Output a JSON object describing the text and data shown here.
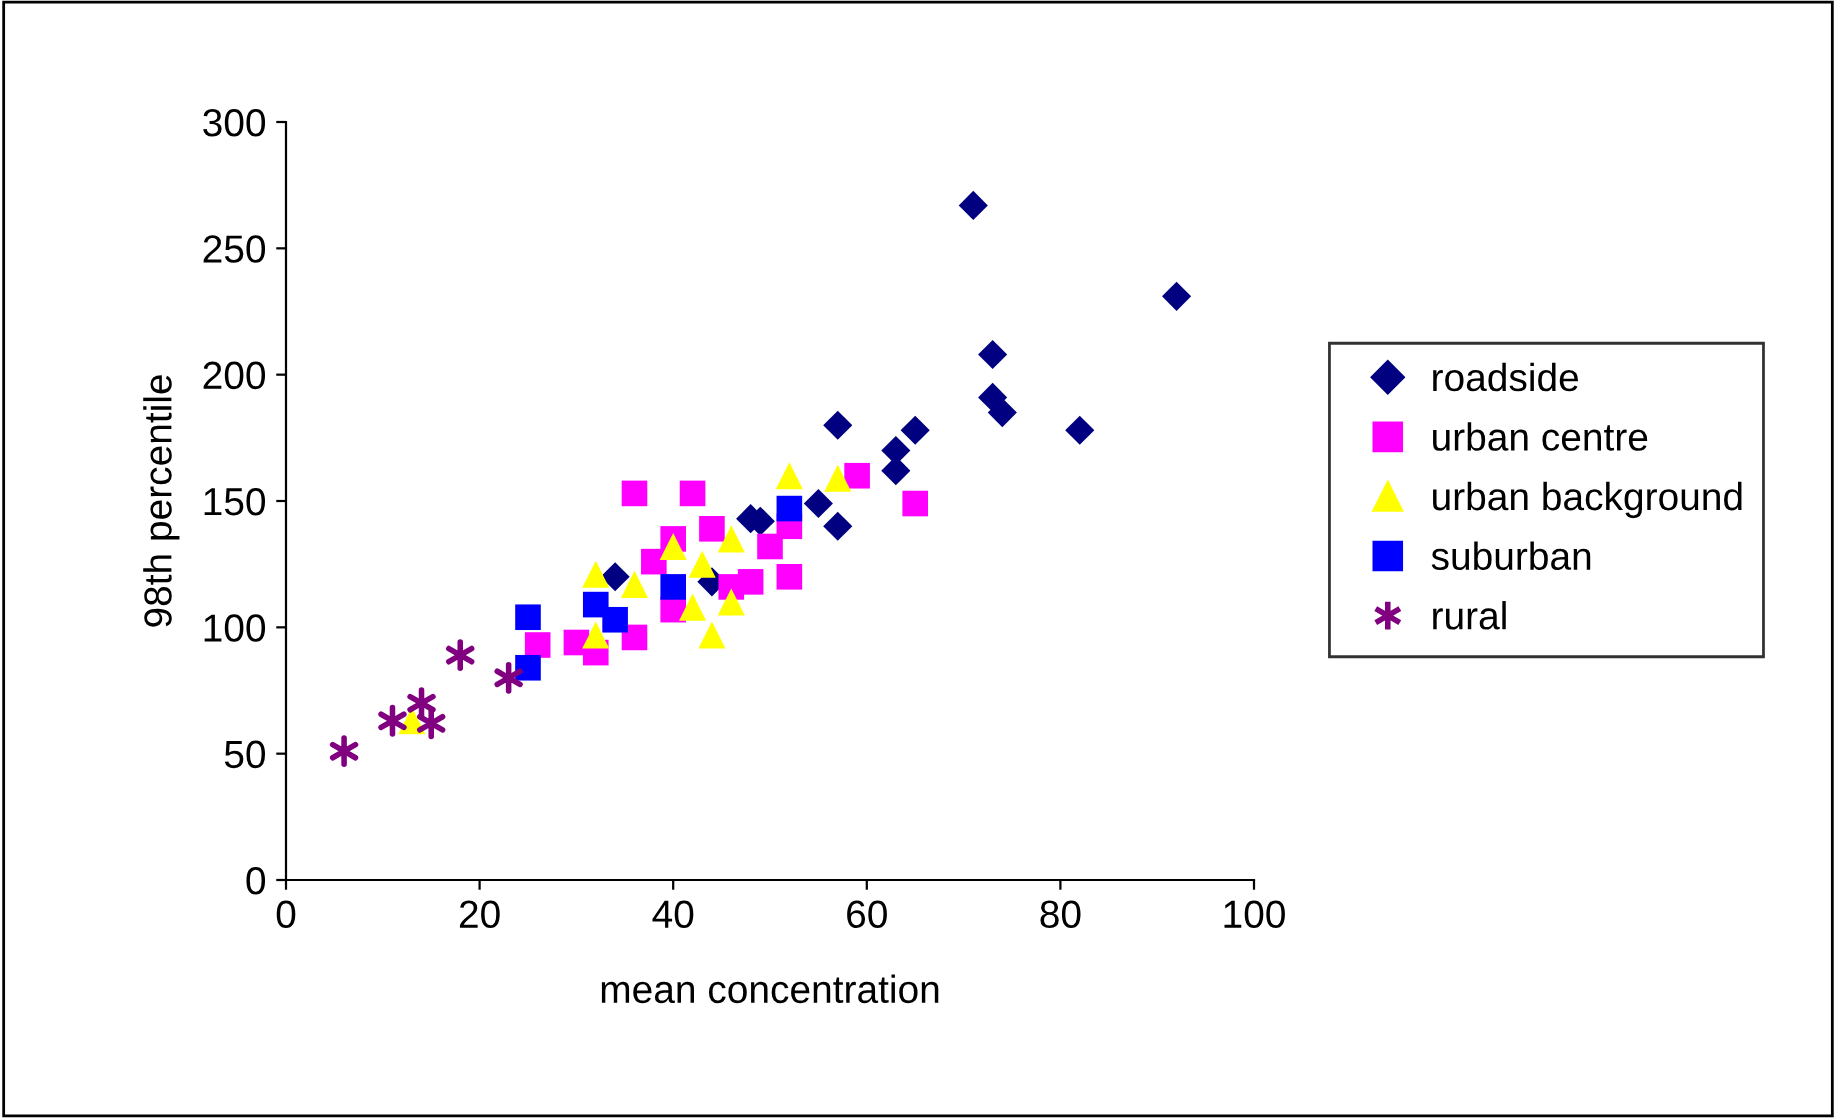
{
  "chart_data": {
    "type": "scatter",
    "xlabel": "mean concentration",
    "ylabel": "98th percentile",
    "xlim": [
      0,
      100
    ],
    "ylim": [
      0,
      300
    ],
    "xticks": [
      0,
      20,
      40,
      60,
      80,
      100
    ],
    "yticks": [
      0,
      50,
      100,
      150,
      200,
      250,
      300
    ],
    "grid": false,
    "legend": "right",
    "series": [
      {
        "name": "roadside",
        "color": "#000080",
        "marker": "diamond",
        "x": [
          71,
          92,
          73,
          73,
          74,
          82,
          65,
          57,
          63,
          63,
          57,
          55,
          49,
          48,
          44,
          34
        ],
        "values": [
          267,
          231,
          208,
          191,
          185,
          178,
          178,
          180,
          170,
          162,
          140,
          149,
          142,
          143,
          118,
          120
        ]
      },
      {
        "name": "urban centre",
        "color": "#ff00ff",
        "marker": "square",
        "x": [
          36,
          42,
          59,
          65,
          44,
          40,
          38,
          50,
          52,
          52,
          48,
          46,
          40,
          36,
          32,
          30,
          26
        ],
        "values": [
          153,
          153,
          160,
          149,
          139,
          135,
          126,
          132,
          140,
          120,
          118,
          116,
          107,
          96,
          90,
          94,
          93
        ]
      },
      {
        "name": "urban background",
        "color": "#ffff00",
        "marker": "triangle",
        "x": [
          13,
          32,
          36,
          40,
          43,
          46,
          52,
          57,
          44,
          46,
          42,
          32
        ],
        "values": [
          63,
          121,
          117,
          132,
          125,
          135,
          160,
          159,
          97,
          110,
          108,
          97
        ]
      },
      {
        "name": "suburban",
        "color": "#0000ff",
        "marker": "square",
        "x": [
          25,
          25,
          32,
          34,
          40,
          52
        ],
        "values": [
          104,
          84,
          109,
          103,
          116,
          147
        ]
      },
      {
        "name": "rural",
        "color": "#800080",
        "marker": "cross",
        "x": [
          6,
          11,
          14,
          15,
          18,
          23
        ],
        "values": [
          51,
          63,
          70,
          62,
          89,
          80
        ]
      }
    ]
  }
}
